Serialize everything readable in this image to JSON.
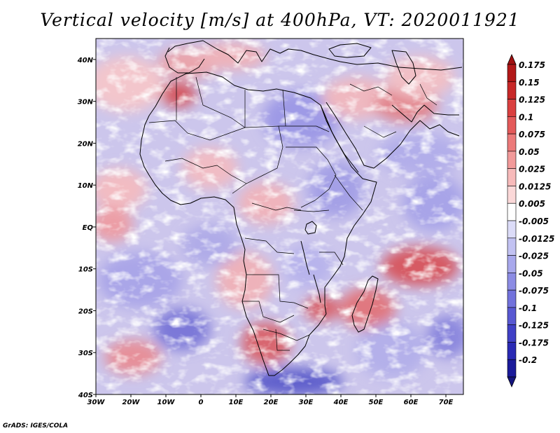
{
  "title": "Vertical velocity [m/s] at 400hPa, VT: 2020011921",
  "credit": "GrADS: IGES/COLA",
  "map": {
    "lon_labels": [
      "30W",
      "20W",
      "10W",
      "0",
      "10E",
      "20E",
      "30E",
      "40E",
      "50E",
      "60E",
      "70E"
    ],
    "lat_labels": [
      "40N",
      "30N",
      "20N",
      "10N",
      "EQ",
      "10S",
      "20S",
      "30S",
      "40S"
    ],
    "lon_range": [
      -30,
      75
    ],
    "lat_range": [
      -40,
      45
    ]
  },
  "colorbar": {
    "labels": [
      "0.175",
      "0.15",
      "0.125",
      "0.1",
      "0.075",
      "0.05",
      "0.025",
      "0.0125",
      "0.005",
      "-0.005",
      "-0.0125",
      "-0.025",
      "-0.05",
      "-0.075",
      "-0.1",
      "-0.125",
      "-0.175",
      "-0.2"
    ],
    "colors": [
      "#b21818",
      "#c82828",
      "#da4040",
      "#e45a5a",
      "#ec7a7a",
      "#f29a9a",
      "#f7baba",
      "#fbd8d8",
      "#ffffff",
      "#dcdcf8",
      "#c2c2f2",
      "#a8a8ec",
      "#8c8ce4",
      "#7272dc",
      "#5858d2",
      "#4040c6",
      "#2a2ab4",
      "#1a1a9a"
    ],
    "top_triangle_color": "#a01010",
    "bottom_triangle_color": "#14147e"
  },
  "colors": {
    "background": "#ffffff",
    "coast": "#000000",
    "positive_hot": "#c83232",
    "negative_cold": "#3c3cc8",
    "neutral_light": "#e6e2f4"
  }
}
